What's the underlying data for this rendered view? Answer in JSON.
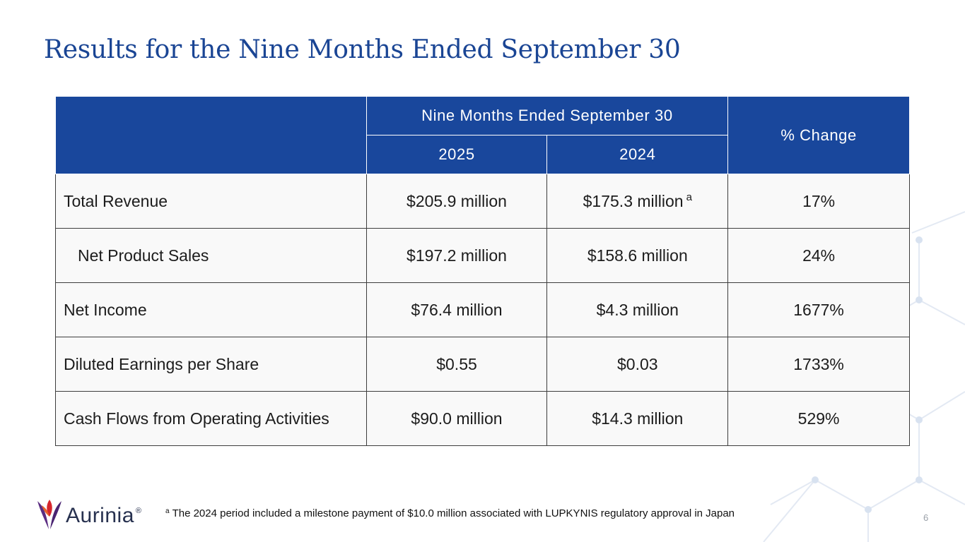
{
  "slide": {
    "title": "Results for the Nine Months Ended September 30",
    "page_number": "6"
  },
  "table": {
    "header": {
      "group_label": "Nine Months Ended September 30",
      "change_label": "% Change",
      "year_current": "2025",
      "year_prior": "2024"
    },
    "rows": [
      {
        "metric": "Total Revenue",
        "current": "$205.9 million",
        "prior": "$175.3 million",
        "prior_note": "a",
        "change": "17%"
      },
      {
        "metric": "Net Product Sales",
        "current": "$197.2 million",
        "prior": "$158.6 million",
        "change": "24%"
      },
      {
        "metric": "Net Income",
        "current": "$76.4 million",
        "prior": "$4.3 million",
        "change": "1677%"
      },
      {
        "metric": "Diluted Earnings per Share",
        "current": "$0.55",
        "prior": "$0.03",
        "change": "1733%"
      },
      {
        "metric": "Cash Flows from Operating Activities",
        "current": "$90.0 million",
        "prior": "$14.3 million",
        "change": "529%"
      }
    ]
  },
  "footnote": {
    "marker": "a",
    "text": "The 2024 period included a milestone payment of $10.0 million associated with LUPKYNIS regulatory approval in Japan"
  },
  "logo": {
    "name": "Aurinia",
    "registered_mark": "®"
  },
  "colors": {
    "title": "#1a4594",
    "header_bg": "#19479c",
    "network_lines": "#e2e9f4",
    "logo_purple": "#5b2d82",
    "logo_red": "#d7262c"
  }
}
